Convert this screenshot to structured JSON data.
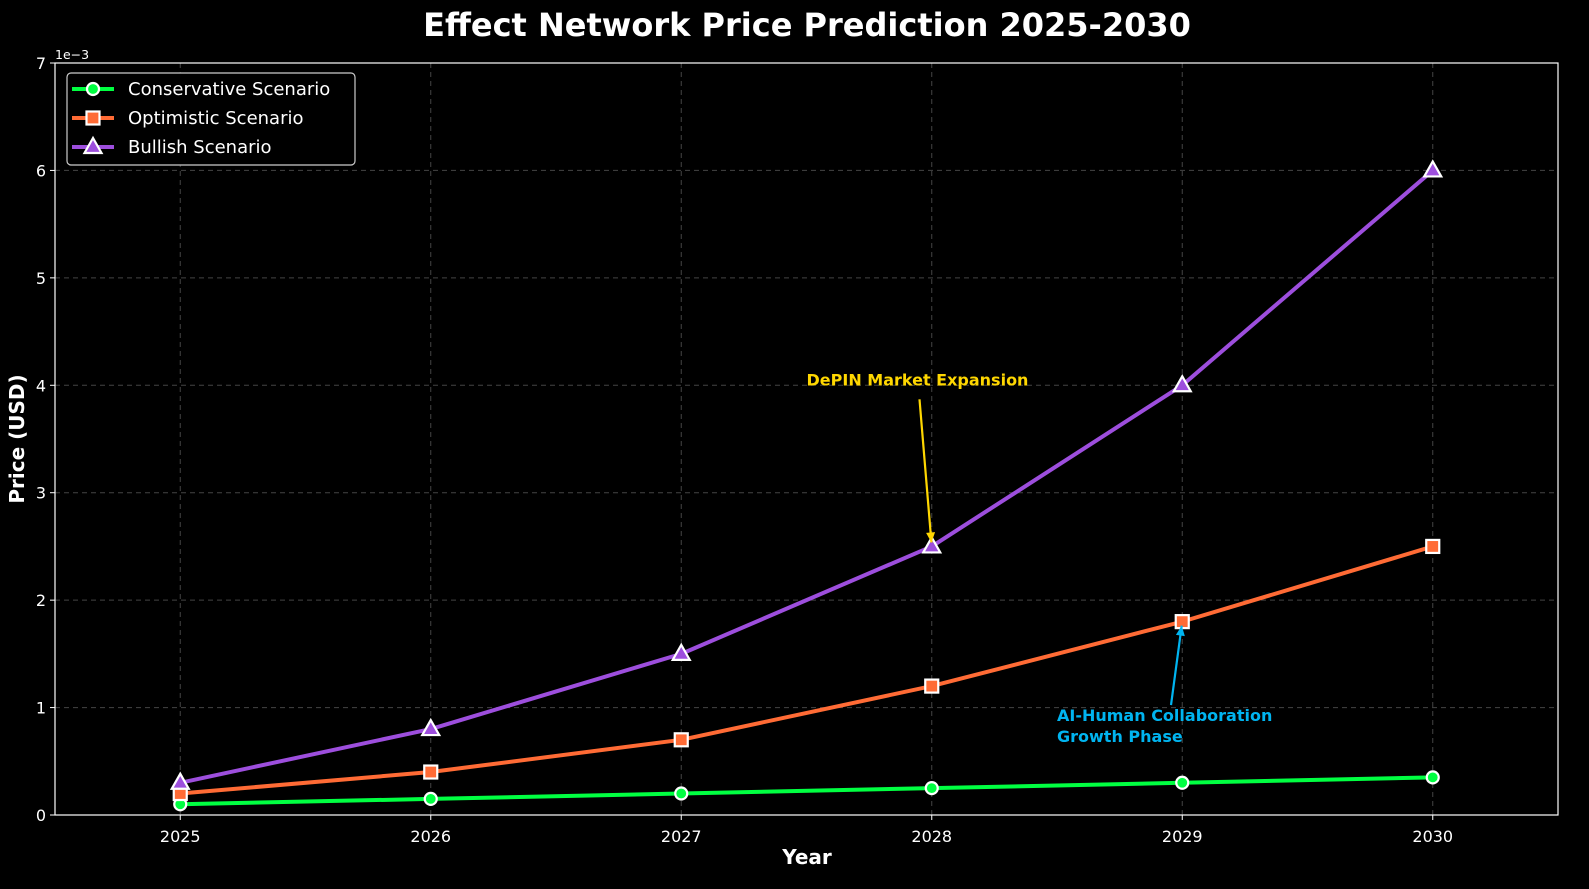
{
  "chart_data": {
    "type": "line",
    "title": "Effect Network Price Prediction 2025-2030",
    "xlabel": "Year",
    "ylabel": "Price (USD)",
    "y_offset_label": "1e−3",
    "x": [
      2025,
      2026,
      2027,
      2028,
      2029,
      2030
    ],
    "x_tick_labels": [
      "2025",
      "2026",
      "2027",
      "2028",
      "2029",
      "2030"
    ],
    "xlim": [
      2024.5,
      2030.5
    ],
    "ylim": [
      0,
      7
    ],
    "y_ticks": [
      0,
      1,
      2,
      3,
      4,
      5,
      6,
      7
    ],
    "y_tick_labels": [
      "0",
      "1",
      "2",
      "3",
      "4",
      "5",
      "6",
      "7"
    ],
    "y_scale_note": "values in units of 1e-3 USD",
    "grid": true,
    "legend_position": "top-left",
    "series": [
      {
        "name": "Conservative Scenario",
        "color": "#00ff41",
        "marker": "circle",
        "values": [
          0.1,
          0.15,
          0.2,
          0.25,
          0.3,
          0.35
        ]
      },
      {
        "name": "Optimistic Scenario",
        "color": "#ff6b35",
        "marker": "square",
        "values": [
          0.2,
          0.4,
          0.7,
          1.2,
          1.8,
          2.5
        ]
      },
      {
        "name": "Bullish Scenario",
        "color": "#9d4edd",
        "marker": "triangle",
        "values": [
          0.3,
          0.8,
          1.5,
          2.5,
          4.0,
          6.0
        ]
      }
    ],
    "annotations": [
      {
        "lines": [
          "DePIN Market Expansion"
        ],
        "color": "#ffd700",
        "point": [
          2028,
          2.5
        ],
        "text_at": [
          2027.5,
          4.0
        ]
      },
      {
        "lines": [
          "AI-Human Collaboration",
          "Growth Phase"
        ],
        "color": "#00b4f0",
        "point": [
          2029,
          1.8
        ],
        "text_at": [
          2028.5,
          0.8
        ]
      }
    ]
  }
}
